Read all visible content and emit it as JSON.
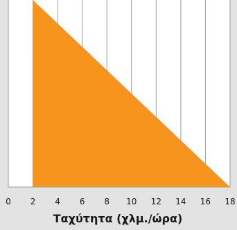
{
  "chart_data": {
    "type": "area",
    "title": "",
    "xlabel": "Ταχύτητα (χλμ./ώρα)",
    "ylabel": "",
    "xlim": [
      0,
      18
    ],
    "ylim": [
      0,
      1
    ],
    "x_ticks": [
      0,
      2,
      4,
      6,
      8,
      10,
      12,
      14,
      16,
      18
    ],
    "x_tick_labels": [
      "0",
      "2",
      "4",
      "6",
      "8",
      "10",
      "12",
      "14",
      "16",
      "18"
    ],
    "grid": "vertical",
    "series": [
      {
        "x": [
          2,
          18
        ],
        "y": [
          1,
          0
        ],
        "fill_color": "#f7941d"
      }
    ]
  },
  "colors": {
    "background": "#e3e3e3",
    "plot_background": "#ffffff",
    "grid": "#9a9a9a",
    "fill": "#f7941d"
  }
}
